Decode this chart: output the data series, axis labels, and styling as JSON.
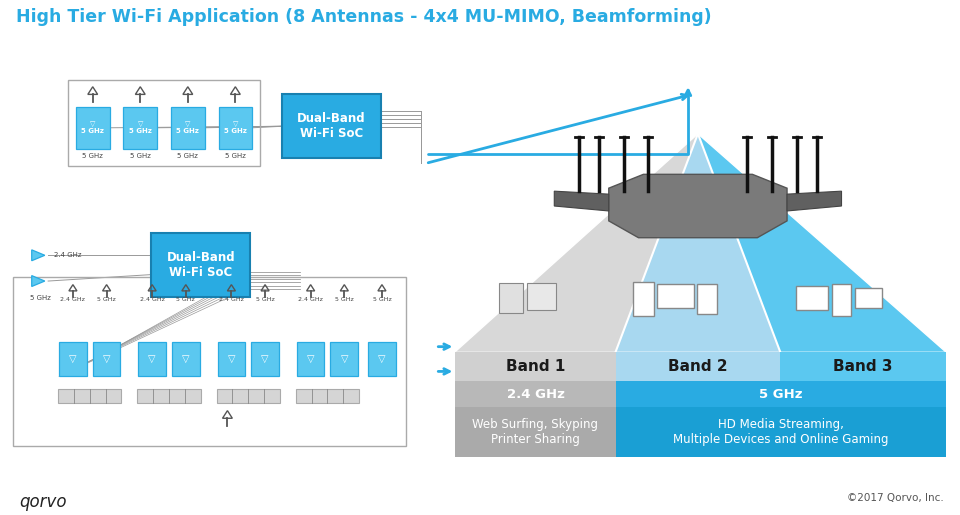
{
  "title": "High Tier Wi-Fi Application (8 Antennas - 4x4 MU-MIMO, Beamforming)",
  "title_color": "#29ABE2",
  "title_fontsize": 12.5,
  "bg_color": "#ffffff",
  "qorvo_text": "qorvo",
  "copyright_text": "©2017 Qorvo, Inc.",
  "soc_color": "#29ABE2",
  "arrow_color": "#29ABE2",
  "box_color": "#5bc8f0",
  "box_border": "#29ABE2",
  "line_color": "#999999",
  "band1_tri_color": "#d8d8d8",
  "band2_tri_color": "#a8d8f0",
  "band3_tri_color": "#5bc8f0",
  "band1_label_bg": "#d0d0d0",
  "band2_label_bg": "#a8d8f0",
  "band3_label_bg": "#5bc8f0",
  "freq1_bg": "#b8b8b8",
  "freq23_bg": "#29ABE2",
  "use1_bg": "#aaaaaa",
  "use23_bg": "#1a9fd4",
  "router_body_color": "#909090",
  "router_wing_color": "#b8b8b8"
}
